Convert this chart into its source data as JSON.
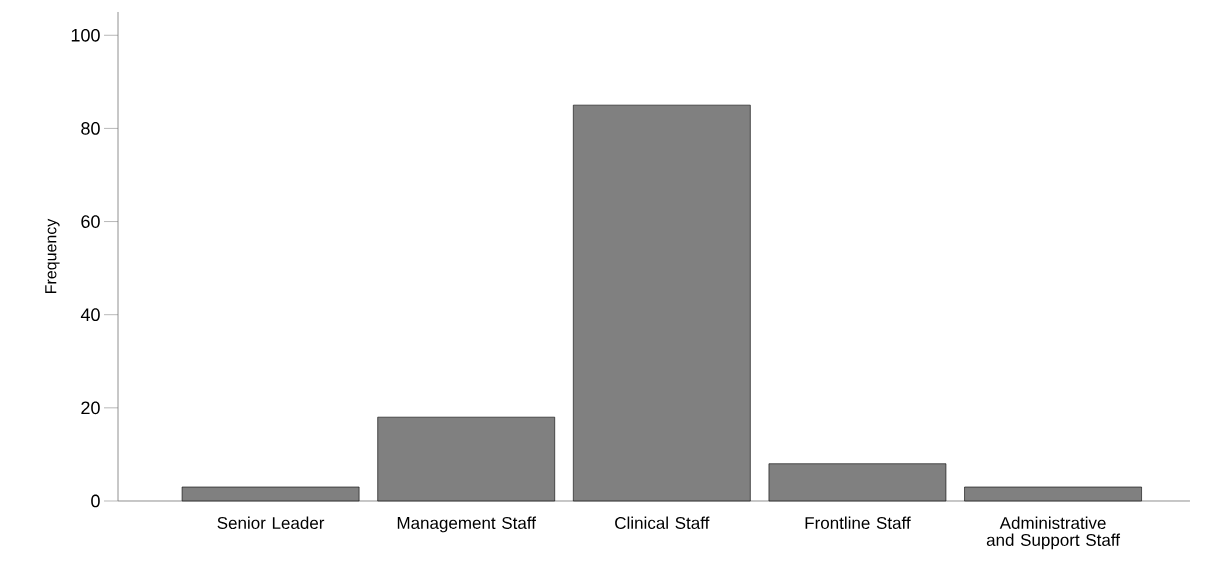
{
  "chart_data": {
    "type": "bar",
    "ylabel": "Frequency",
    "categories": [
      "Senior Leader",
      "Management Staff",
      "Clinical Staff",
      "Frontline Staff",
      "Administrative and Support Staff"
    ],
    "values": [
      3,
      18,
      85,
      8,
      3
    ],
    "color": "#808080",
    "ylim": [
      0,
      105
    ],
    "yticks": [
      0,
      20,
      40,
      60,
      80,
      100
    ],
    "grid": false
  }
}
